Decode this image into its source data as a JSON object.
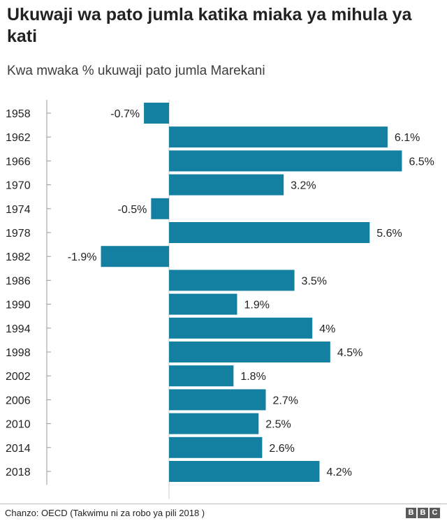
{
  "title": "Ukuwaji wa pato jumla katika miaka ya mihula ya kati",
  "subtitle": "Kwa mwaka % ukuwaji pato jumla Marekani",
  "source": "Chanzo: OECD (Takwimu ni za robo ya pili 2018 )",
  "logo_letters": [
    "B",
    "B",
    "C"
  ],
  "colors": {
    "bar": "#1380a1",
    "axis": "#999999",
    "text": "#222222"
  },
  "chart_data": {
    "type": "bar",
    "orientation": "horizontal",
    "title": "Ukuwaji wa pato jumla katika miaka ya mihula ya kati",
    "subtitle": "Kwa mwaka % ukuwaji pato jumla Marekani",
    "categories": [
      "1958",
      "1962",
      "1966",
      "1970",
      "1974",
      "1978",
      "1982",
      "1986",
      "1990",
      "1994",
      "1998",
      "2002",
      "2006",
      "2010",
      "2014",
      "2018"
    ],
    "values": [
      -0.7,
      6.1,
      6.5,
      3.2,
      -0.5,
      5.6,
      -1.9,
      3.5,
      1.9,
      4,
      4.5,
      1.8,
      2.7,
      2.5,
      2.6,
      4.2
    ],
    "data_labels": [
      "-0.7%",
      "6.1%",
      "6.5%",
      "3.2%",
      "-0.5%",
      "5.6%",
      "-1.9%",
      "3.5%",
      "1.9%",
      "4%",
      "4.5%",
      "1.8%",
      "2.7%",
      "2.5%",
      "2.6%",
      "4.2%"
    ],
    "xlabel": "",
    "ylabel": "",
    "grid": false,
    "legend": "none"
  }
}
